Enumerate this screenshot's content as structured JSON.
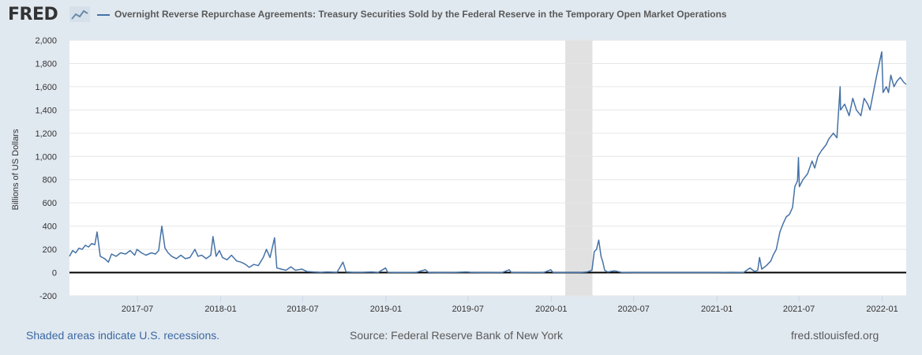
{
  "header": {
    "logo_text": "FRED",
    "logo_icon": "line-chart-icon",
    "series_title": "Overnight Reverse Repurchase Agreements: Treasury Securities Sold by the Federal Reserve in the Temporary Open Market Operations"
  },
  "footer": {
    "recession_note": "Shaded areas indicate U.S. recessions.",
    "source": "Source: Federal Reserve Bank of New York",
    "site": "fred.stlouisfed.org"
  },
  "colors": {
    "line": "#4572a7",
    "recession": "#e1e1e1",
    "background": "#e1e9f0",
    "plot": "#ffffff",
    "zero_line": "#000000"
  },
  "chart_data": {
    "type": "line",
    "ylabel": "Billions of US Dollars",
    "ylim": [
      -200,
      2000
    ],
    "yticks": [
      -200,
      0,
      200,
      400,
      600,
      800,
      1000,
      1200,
      1400,
      1600,
      1800,
      2000
    ],
    "ytick_labels": [
      "-200",
      "0",
      "200",
      "400",
      "600",
      "800",
      "1,000",
      "1,200",
      "1,400",
      "1,600",
      "1,800",
      "2,000"
    ],
    "xlim": [
      "2017-02-01",
      "2022-02-23"
    ],
    "xticks": [
      "2017-07-01",
      "2018-01-01",
      "2018-07-01",
      "2019-01-01",
      "2019-07-01",
      "2020-01-01",
      "2020-07-01",
      "2021-01-01",
      "2021-07-01",
      "2022-01-01"
    ],
    "xtick_labels": [
      "2017-07",
      "2018-01",
      "2018-07",
      "2019-01",
      "2019-07",
      "2020-01",
      "2020-07",
      "2021-01",
      "2021-07",
      "2022-01"
    ],
    "grid": "horizontal",
    "zero_line": true,
    "recessions": [
      {
        "start": "2020-02-01",
        "end": "2020-04-01"
      }
    ],
    "series": [
      {
        "name": "Overnight Reverse Repurchase Agreements: Treasury Securities Sold by the Federal Reserve in the Temporary Open Market Operations",
        "points": [
          [
            "2017-02-01",
            140
          ],
          [
            "2017-02-08",
            190
          ],
          [
            "2017-02-15",
            170
          ],
          [
            "2017-02-22",
            210
          ],
          [
            "2017-03-01",
            200
          ],
          [
            "2017-03-08",
            235
          ],
          [
            "2017-03-15",
            220
          ],
          [
            "2017-03-22",
            250
          ],
          [
            "2017-03-29",
            240
          ],
          [
            "2017-04-03",
            350
          ],
          [
            "2017-04-10",
            140
          ],
          [
            "2017-04-20",
            120
          ],
          [
            "2017-04-28",
            90
          ],
          [
            "2017-05-05",
            160
          ],
          [
            "2017-05-15",
            140
          ],
          [
            "2017-05-25",
            170
          ],
          [
            "2017-06-05",
            160
          ],
          [
            "2017-06-15",
            190
          ],
          [
            "2017-06-25",
            150
          ],
          [
            "2017-06-30",
            200
          ],
          [
            "2017-07-10",
            170
          ],
          [
            "2017-07-20",
            150
          ],
          [
            "2017-08-01",
            170
          ],
          [
            "2017-08-10",
            160
          ],
          [
            "2017-08-17",
            190
          ],
          [
            "2017-08-24",
            400
          ],
          [
            "2017-08-31",
            210
          ],
          [
            "2017-09-07",
            170
          ],
          [
            "2017-09-15",
            140
          ],
          [
            "2017-09-25",
            120
          ],
          [
            "2017-10-05",
            150
          ],
          [
            "2017-10-15",
            120
          ],
          [
            "2017-10-25",
            130
          ],
          [
            "2017-11-05",
            200
          ],
          [
            "2017-11-12",
            140
          ],
          [
            "2017-11-20",
            150
          ],
          [
            "2017-11-30",
            120
          ],
          [
            "2017-12-10",
            150
          ],
          [
            "2017-12-15",
            310
          ],
          [
            "2017-12-22",
            140
          ],
          [
            "2017-12-29",
            190
          ],
          [
            "2018-01-05",
            130
          ],
          [
            "2018-01-15",
            110
          ],
          [
            "2018-01-25",
            150
          ],
          [
            "2018-02-05",
            100
          ],
          [
            "2018-02-15",
            90
          ],
          [
            "2018-02-25",
            70
          ],
          [
            "2018-03-05",
            45
          ],
          [
            "2018-03-15",
            70
          ],
          [
            "2018-03-25",
            60
          ],
          [
            "2018-04-05",
            130
          ],
          [
            "2018-04-12",
            200
          ],
          [
            "2018-04-20",
            130
          ],
          [
            "2018-04-30",
            300
          ],
          [
            "2018-05-05",
            40
          ],
          [
            "2018-05-15",
            30
          ],
          [
            "2018-05-25",
            20
          ],
          [
            "2018-06-05",
            50
          ],
          [
            "2018-06-15",
            20
          ],
          [
            "2018-06-29",
            30
          ],
          [
            "2018-07-10",
            10
          ],
          [
            "2018-07-25",
            5
          ],
          [
            "2018-08-10",
            3
          ],
          [
            "2018-08-25",
            5
          ],
          [
            "2018-09-15",
            3
          ],
          [
            "2018-09-28",
            90
          ],
          [
            "2018-10-05",
            5
          ],
          [
            "2018-10-20",
            3
          ],
          [
            "2018-11-10",
            3
          ],
          [
            "2018-11-30",
            5
          ],
          [
            "2018-12-15",
            2
          ],
          [
            "2018-12-31",
            40
          ],
          [
            "2019-01-05",
            3
          ],
          [
            "2019-01-20",
            2
          ],
          [
            "2019-02-15",
            2
          ],
          [
            "2019-03-10",
            3
          ],
          [
            "2019-03-29",
            25
          ],
          [
            "2019-04-05",
            2
          ],
          [
            "2019-05-01",
            1
          ],
          [
            "2019-06-01",
            2
          ],
          [
            "2019-06-28",
            5
          ],
          [
            "2019-07-10",
            2
          ],
          [
            "2019-08-15",
            1
          ],
          [
            "2019-09-15",
            2
          ],
          [
            "2019-09-30",
            25
          ],
          [
            "2019-10-05",
            1
          ],
          [
            "2019-11-01",
            1
          ],
          [
            "2019-11-29",
            2
          ],
          [
            "2019-12-15",
            1
          ],
          [
            "2019-12-31",
            25
          ],
          [
            "2020-01-05",
            2
          ],
          [
            "2020-02-05",
            1
          ],
          [
            "2020-03-05",
            1
          ],
          [
            "2020-03-20",
            5
          ],
          [
            "2020-03-31",
            20
          ],
          [
            "2020-04-05",
            180
          ],
          [
            "2020-04-10",
            200
          ],
          [
            "2020-04-15",
            280
          ],
          [
            "2020-04-20",
            140
          ],
          [
            "2020-04-24",
            90
          ],
          [
            "2020-04-28",
            20
          ],
          [
            "2020-05-05",
            5
          ],
          [
            "2020-05-20",
            15
          ],
          [
            "2020-06-05",
            2
          ],
          [
            "2020-07-01",
            1
          ],
          [
            "2020-08-01",
            1
          ],
          [
            "2020-09-01",
            1
          ],
          [
            "2020-10-01",
            1
          ],
          [
            "2020-11-01",
            1
          ],
          [
            "2020-12-01",
            1
          ],
          [
            "2021-01-01",
            1
          ],
          [
            "2021-02-01",
            3
          ],
          [
            "2021-03-01",
            2
          ],
          [
            "2021-03-15",
            40
          ],
          [
            "2021-03-25",
            10
          ],
          [
            "2021-04-01",
            20
          ],
          [
            "2021-04-05",
            130
          ],
          [
            "2021-04-10",
            30
          ],
          [
            "2021-04-20",
            60
          ],
          [
            "2021-04-30",
            100
          ],
          [
            "2021-05-05",
            150
          ],
          [
            "2021-05-12",
            200
          ],
          [
            "2021-05-20",
            350
          ],
          [
            "2021-05-27",
            420
          ],
          [
            "2021-06-03",
            480
          ],
          [
            "2021-06-10",
            500
          ],
          [
            "2021-06-17",
            560
          ],
          [
            "2021-06-22",
            740
          ],
          [
            "2021-06-28",
            790
          ],
          [
            "2021-06-30",
            990
          ],
          [
            "2021-07-02",
            740
          ],
          [
            "2021-07-10",
            800
          ],
          [
            "2021-07-20",
            850
          ],
          [
            "2021-07-30",
            960
          ],
          [
            "2021-08-05",
            900
          ],
          [
            "2021-08-12",
            1000
          ],
          [
            "2021-08-20",
            1050
          ],
          [
            "2021-08-30",
            1100
          ],
          [
            "2021-09-05",
            1150
          ],
          [
            "2021-09-15",
            1200
          ],
          [
            "2021-09-23",
            1160
          ],
          [
            "2021-09-30",
            1600
          ],
          [
            "2021-10-01",
            1400
          ],
          [
            "2021-10-10",
            1450
          ],
          [
            "2021-10-20",
            1350
          ],
          [
            "2021-10-28",
            1500
          ],
          [
            "2021-11-05",
            1400
          ],
          [
            "2021-11-15",
            1350
          ],
          [
            "2021-11-22",
            1500
          ],
          [
            "2021-11-30",
            1450
          ],
          [
            "2021-12-05",
            1400
          ],
          [
            "2021-12-15",
            1600
          ],
          [
            "2021-12-20",
            1700
          ],
          [
            "2021-12-31",
            1900
          ],
          [
            "2022-01-03",
            1550
          ],
          [
            "2022-01-10",
            1600
          ],
          [
            "2022-01-15",
            1550
          ],
          [
            "2022-01-20",
            1700
          ],
          [
            "2022-01-27",
            1600
          ],
          [
            "2022-02-03",
            1650
          ],
          [
            "2022-02-10",
            1680
          ],
          [
            "2022-02-17",
            1640
          ],
          [
            "2022-02-23",
            1620
          ]
        ]
      }
    ]
  }
}
